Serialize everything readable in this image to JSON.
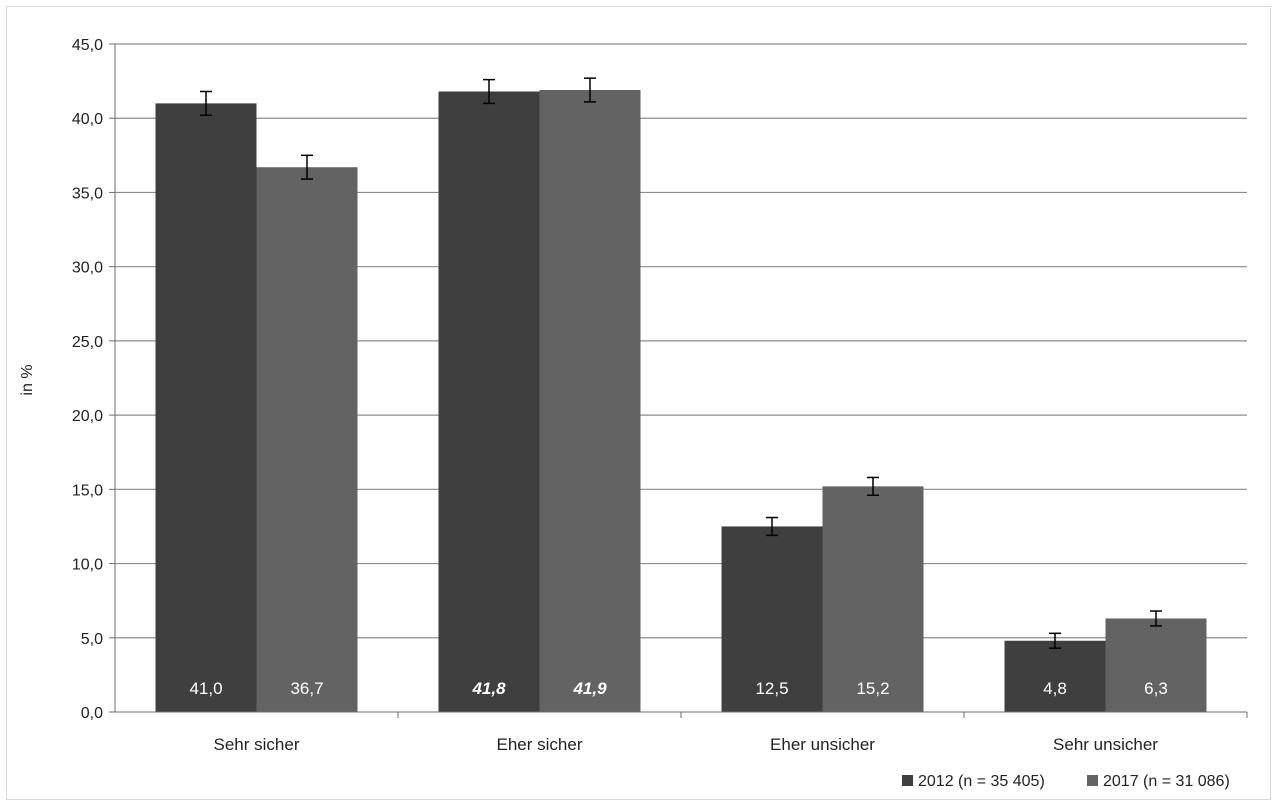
{
  "chart_data": {
    "type": "bar",
    "categories": [
      "Sehr sicher",
      "Eher sicher",
      "Eher unsicher",
      "Sehr unsicher"
    ],
    "ylabel": "in %",
    "xlabel": "",
    "title": "",
    "ylim": [
      0,
      45
    ],
    "yticks": [
      "0,0",
      "5,0",
      "10,0",
      "15,0",
      "20,0",
      "25,0",
      "30,0",
      "35,0",
      "40,0",
      "45,0"
    ],
    "ytick_values": [
      0,
      5,
      10,
      15,
      20,
      25,
      30,
      35,
      40,
      45
    ],
    "grid": true,
    "legend_position": "bottom-right",
    "series": [
      {
        "name": "2012 (n = 35 405)",
        "color": "#3f3f3f",
        "values": [
          41.0,
          41.8,
          12.5,
          4.8
        ],
        "labels": [
          "41,0",
          "41,8",
          "12,5",
          "4,8"
        ],
        "label_italic": [
          false,
          true,
          false,
          false
        ],
        "error": [
          0.8,
          0.8,
          0.6,
          0.5
        ]
      },
      {
        "name": "2017 (n = 31 086)",
        "color": "#636363",
        "values": [
          36.7,
          41.9,
          15.2,
          6.3
        ],
        "labels": [
          "36,7",
          "41,9",
          "15,2",
          "6,3"
        ],
        "label_italic": [
          false,
          true,
          false,
          false
        ],
        "error": [
          0.8,
          0.8,
          0.6,
          0.5
        ]
      }
    ]
  }
}
